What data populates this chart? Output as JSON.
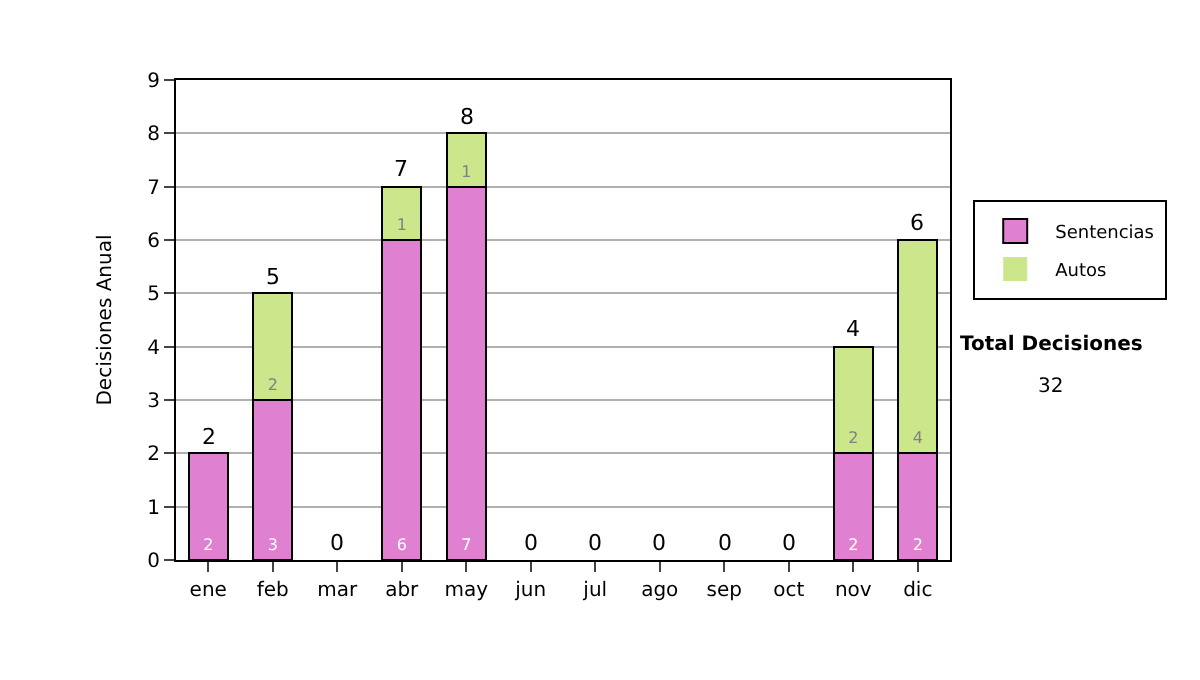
{
  "chart_data": {
    "type": "bar",
    "stacked": true,
    "ylabel": "Decisiones Anual",
    "categories": [
      "ene",
      "feb",
      "mar",
      "abr",
      "may",
      "jun",
      "jul",
      "ago",
      "sep",
      "oct",
      "nov",
      "dic"
    ],
    "series": [
      {
        "name": "Sentencias",
        "color": "#e080d0",
        "values": [
          2,
          3,
          0,
          6,
          7,
          0,
          0,
          0,
          0,
          0,
          2,
          2
        ],
        "value_labels": [
          "2",
          "3",
          null,
          "6",
          "7",
          null,
          null,
          null,
          null,
          null,
          "2",
          "2"
        ]
      },
      {
        "name": "Autos",
        "color": "#cce68c",
        "values": [
          0,
          2,
          0,
          1,
          1,
          0,
          0,
          0,
          0,
          0,
          2,
          4
        ],
        "value_labels": [
          null,
          "2",
          null,
          "1",
          "1",
          null,
          null,
          null,
          null,
          null,
          "2",
          "4"
        ]
      }
    ],
    "totals": [
      "2",
      "5",
      "0",
      "7",
      "8",
      "0",
      "0",
      "0",
      "0",
      "0",
      "4",
      "6"
    ],
    "ylim": [
      0,
      9
    ],
    "yticks": [
      0,
      1,
      2,
      3,
      4,
      5,
      6,
      7,
      8,
      9
    ],
    "grid": "y",
    "legend": "right",
    "annotations": [
      "Total Decisiones",
      "32"
    ]
  }
}
